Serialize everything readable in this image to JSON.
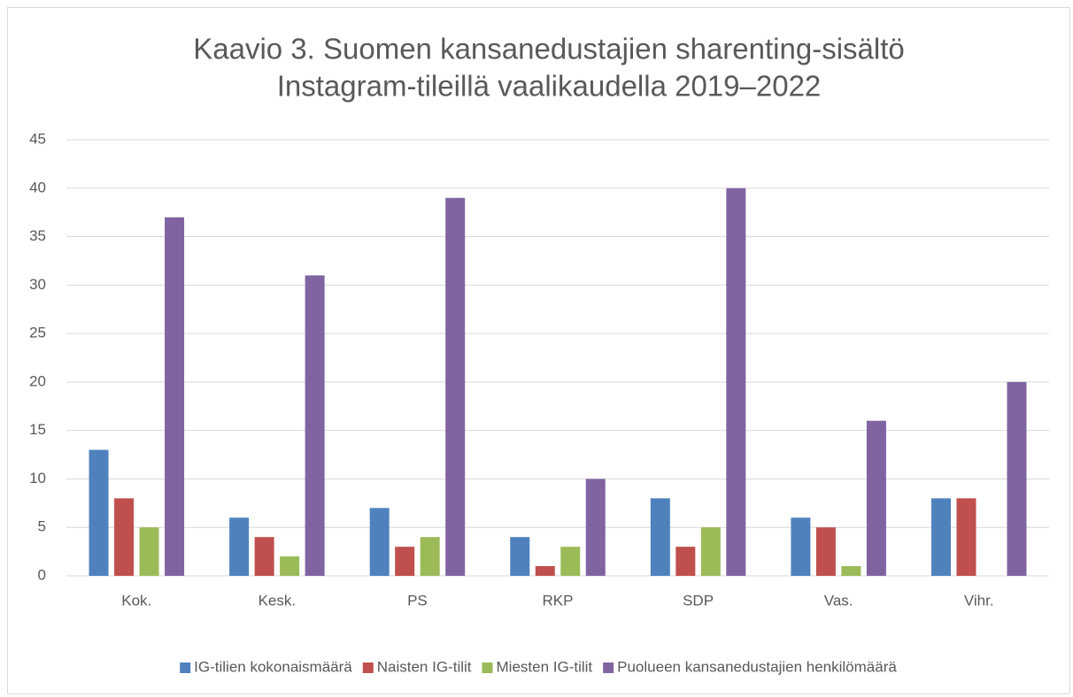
{
  "chart_data": {
    "type": "bar",
    "title": [
      "Kaavio 3. Suomen kansanedustajien sharenting-sisältö",
      "Instagram-tileillä vaalikaudella 2019–2022"
    ],
    "categories": [
      "Kok.",
      "Kesk.",
      "PS",
      "RKP",
      "SDP",
      "Vas.",
      "Vihr."
    ],
    "series": [
      {
        "name": "IG-tilien kokonaismäärä",
        "color": "#4f81bd",
        "values": [
          13,
          6,
          7,
          4,
          8,
          6,
          8
        ]
      },
      {
        "name": "Naisten IG-tilit",
        "color": "#c0504d",
        "values": [
          8,
          4,
          3,
          1,
          3,
          5,
          8
        ]
      },
      {
        "name": "Miesten IG-tilit",
        "color": "#9bbb59",
        "values": [
          5,
          2,
          4,
          3,
          5,
          1,
          0
        ]
      },
      {
        "name": "Puolueen kansanedustajien henkilömäärä",
        "color": "#8064a2",
        "values": [
          37,
          31,
          39,
          10,
          40,
          16,
          20
        ]
      }
    ],
    "ylim": [
      0,
      45
    ],
    "yticks": [
      0,
      5,
      10,
      15,
      20,
      25,
      30,
      35,
      40,
      45
    ],
    "grid": true,
    "legend": "bottom"
  }
}
